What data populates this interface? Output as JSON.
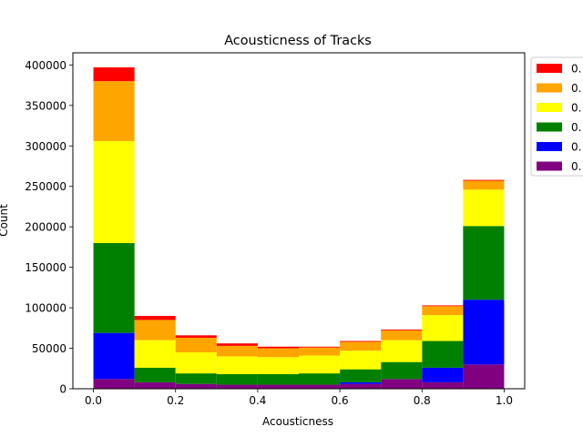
{
  "chart_data": {
    "type": "bar",
    "stacked": true,
    "title": "Acousticness of Tracks",
    "xlabel": "Acousticness",
    "ylabel": "Count",
    "xlim": [
      -0.05,
      1.05
    ],
    "ylim": [
      0,
      415000
    ],
    "xticks": [
      "0.0",
      "0.2",
      "0.4",
      "0.6",
      "0.8",
      "1.0"
    ],
    "yticks": [
      "0",
      "50000",
      "100000",
      "150000",
      "200000",
      "250000",
      "300000",
      "350000",
      "400000"
    ],
    "bin_edges": [
      0.0,
      0.1,
      0.2,
      0.3,
      0.4,
      0.5,
      0.6,
      0.7,
      0.8,
      0.9,
      1.0
    ],
    "legend_position": "outside-top-right",
    "grid": false,
    "series": [
      {
        "name": "0.",
        "color": "#800080",
        "values": [
          12000,
          8000,
          6000,
          5000,
          5000,
          5000,
          6000,
          12000,
          8000,
          30000
        ]
      },
      {
        "name": "0.",
        "color": "#0000ff",
        "values": [
          57000,
          0,
          0,
          0,
          0,
          0,
          2000,
          0,
          18000,
          80000
        ]
      },
      {
        "name": "0.",
        "color": "#008000",
        "values": [
          111000,
          18000,
          13000,
          13000,
          13000,
          14000,
          16000,
          21000,
          33000,
          91000
        ]
      },
      {
        "name": "0.",
        "color": "#ffff00",
        "values": [
          126000,
          34000,
          26000,
          22000,
          21000,
          22000,
          23000,
          27000,
          32000,
          45000
        ]
      },
      {
        "name": "0.",
        "color": "#ffa500",
        "values": [
          74000,
          25000,
          18000,
          13000,
          11000,
          10000,
          11000,
          12000,
          11000,
          11000
        ]
      },
      {
        "name": "0.",
        "color": "#ff0000",
        "values": [
          17000,
          5000,
          3000,
          3000,
          2000,
          1000,
          1000,
          1000,
          1000,
          1000
        ]
      }
    ]
  }
}
